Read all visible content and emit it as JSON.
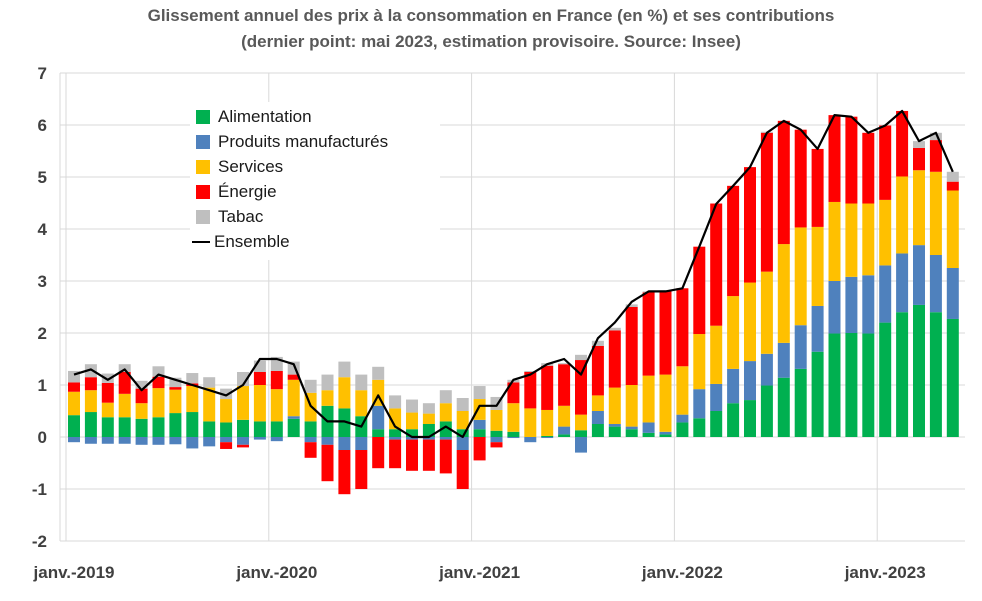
{
  "chart_data": {
    "type": "bar",
    "stacked": true,
    "title": "Glissement annuel des prix à la consommation en France (en %) et ses contributions",
    "subtitle": "(dernier point: mai 2023, estimation provisoire. Source: Insee)",
    "ylim": [
      -2,
      7
    ],
    "yticks": [
      "-2",
      "-1",
      "0",
      "1",
      "2",
      "3",
      "4",
      "5",
      "6",
      "7"
    ],
    "xtick_labels": [
      "janv.-2019",
      "janv.-2020",
      "janv.-2021",
      "janv.-2022",
      "janv.-2023"
    ],
    "grid": true,
    "legend_position": "top-left",
    "x": [
      "2019-01",
      "2019-02",
      "2019-03",
      "2019-04",
      "2019-05",
      "2019-06",
      "2019-07",
      "2019-08",
      "2019-09",
      "2019-10",
      "2019-11",
      "2019-12",
      "2020-01",
      "2020-02",
      "2020-03",
      "2020-04",
      "2020-05",
      "2020-06",
      "2020-07",
      "2020-08",
      "2020-09",
      "2020-10",
      "2020-11",
      "2020-12",
      "2021-01",
      "2021-02",
      "2021-03",
      "2021-04",
      "2021-05",
      "2021-06",
      "2021-07",
      "2021-08",
      "2021-09",
      "2021-10",
      "2021-11",
      "2021-12",
      "2022-01",
      "2022-02",
      "2022-03",
      "2022-04",
      "2022-05",
      "2022-06",
      "2022-07",
      "2022-08",
      "2022-09",
      "2022-10",
      "2022-11",
      "2022-12",
      "2023-01",
      "2023-02",
      "2023-03",
      "2023-04",
      "2023-05"
    ],
    "series": [
      {
        "name": "Alimentation",
        "color": "#00B050",
        "values": [
          0.42,
          0.48,
          0.38,
          0.38,
          0.35,
          0.38,
          0.46,
          0.48,
          0.3,
          0.28,
          0.33,
          0.3,
          0.3,
          0.35,
          0.3,
          0.6,
          0.55,
          0.4,
          0.15,
          0.15,
          0.15,
          0.25,
          0.3,
          0.15,
          0.15,
          0.12,
          0.1,
          0.0,
          0.02,
          0.05,
          0.13,
          0.25,
          0.2,
          0.15,
          0.08,
          0.05,
          0.28,
          0.36,
          0.5,
          0.65,
          0.71,
          0.99,
          1.14,
          1.31,
          1.64,
          1.99,
          2.0,
          1.99,
          2.2,
          2.4,
          2.54,
          2.4,
          2.27
        ]
      },
      {
        "name": "Produits manufacturés",
        "color": "#4F81BD",
        "values": [
          -0.1,
          -0.13,
          -0.13,
          -0.13,
          -0.15,
          -0.15,
          -0.14,
          -0.22,
          -0.18,
          -0.1,
          -0.15,
          -0.05,
          -0.08,
          0.05,
          -0.1,
          -0.15,
          -0.25,
          -0.25,
          0.45,
          -0.05,
          -0.05,
          -0.05,
          -0.05,
          -0.25,
          0.18,
          -0.1,
          -0.02,
          -0.1,
          -0.02,
          0.15,
          -0.3,
          0.25,
          0.05,
          0.05,
          0.2,
          0.05,
          0.15,
          0.56,
          0.52,
          0.66,
          0.75,
          0.61,
          0.67,
          0.84,
          0.88,
          1.01,
          1.08,
          1.12,
          1.1,
          1.13,
          1.15,
          1.1,
          0.98
        ]
      },
      {
        "name": "Services",
        "color": "#FFC000",
        "values": [
          0.45,
          0.42,
          0.28,
          0.45,
          0.3,
          0.56,
          0.45,
          0.5,
          0.65,
          0.45,
          0.65,
          0.7,
          0.62,
          0.7,
          0.55,
          0.3,
          0.6,
          0.5,
          0.5,
          0.4,
          0.32,
          0.2,
          0.35,
          0.35,
          0.4,
          0.4,
          0.55,
          0.55,
          0.5,
          0.4,
          0.3,
          0.3,
          0.7,
          0.8,
          0.9,
          1.1,
          0.93,
          1.06,
          1.12,
          1.4,
          1.51,
          1.58,
          1.9,
          1.88,
          1.52,
          1.52,
          1.41,
          1.38,
          1.26,
          1.48,
          1.44,
          1.6,
          1.49
        ]
      },
      {
        "name": "Énergie",
        "color": "#FF0000",
        "values": [
          0.18,
          0.25,
          0.38,
          0.42,
          0.28,
          0.22,
          0.05,
          0.05,
          0.0,
          -0.13,
          -0.05,
          0.25,
          0.35,
          0.1,
          -0.3,
          -0.7,
          -0.85,
          -0.75,
          -0.6,
          -0.55,
          -0.6,
          -0.6,
          -0.65,
          -0.75,
          -0.45,
          -0.1,
          0.4,
          0.7,
          0.85,
          0.8,
          1.05,
          0.95,
          1.1,
          1.5,
          1.6,
          1.6,
          1.5,
          1.68,
          2.35,
          2.12,
          2.22,
          2.67,
          2.37,
          1.88,
          1.5,
          1.67,
          1.67,
          1.36,
          1.43,
          1.26,
          0.43,
          0.61,
          0.17
        ]
      },
      {
        "name": "Tabac",
        "color": "#BFBFBF",
        "values": [
          0.22,
          0.25,
          0.18,
          0.15,
          0.15,
          0.2,
          0.18,
          0.2,
          0.2,
          0.2,
          0.27,
          0.22,
          0.27,
          0.25,
          0.25,
          0.3,
          0.3,
          0.3,
          0.25,
          0.25,
          0.25,
          0.2,
          0.25,
          0.25,
          0.25,
          0.25,
          0.05,
          0.02,
          0.05,
          0.02,
          0.1,
          0.1,
          0.05,
          0.05,
          0.02,
          0.02,
          0.0,
          0.0,
          0.0,
          0.0,
          0.0,
          0.02,
          0.0,
          0.0,
          0.0,
          0.0,
          0.0,
          0.0,
          0.0,
          0.0,
          0.13,
          0.14,
          0.19
        ]
      }
    ],
    "line": {
      "name": "Ensemble",
      "color": "#000000",
      "values": [
        1.2,
        1.3,
        1.1,
        1.3,
        0.9,
        1.2,
        1.1,
        1.0,
        0.9,
        0.8,
        1.0,
        1.5,
        1.5,
        1.4,
        0.6,
        0.3,
        0.3,
        0.2,
        0.8,
        0.2,
        0.0,
        0.0,
        0.2,
        0.0,
        0.6,
        0.6,
        1.1,
        1.2,
        1.4,
        1.5,
        1.2,
        1.9,
        2.2,
        2.6,
        2.8,
        2.8,
        2.86,
        3.66,
        4.48,
        4.83,
        5.19,
        5.85,
        6.08,
        5.91,
        5.54,
        6.19,
        6.16,
        5.85,
        5.99,
        6.27,
        5.69,
        5.85,
        5.1
      ]
    }
  }
}
